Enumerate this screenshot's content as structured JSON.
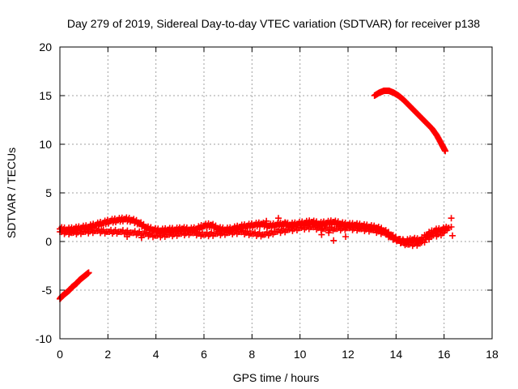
{
  "chart_data": {
    "type": "scatter",
    "title": "Day 279 of 2019, Sidereal Day-to-day VTEC variation (SDTVAR) for receiver p138",
    "xlabel": "GPS time / hours",
    "ylabel": "SDTVAR / TECUs",
    "xlim": [
      0,
      18
    ],
    "ylim": [
      -10,
      20
    ],
    "xticks": [
      0,
      2,
      4,
      6,
      8,
      10,
      12,
      14,
      16,
      18
    ],
    "yticks": [
      -10,
      -5,
      0,
      5,
      10,
      15,
      20
    ],
    "grid": true,
    "marker": "plus",
    "series_color": "#ff0000",
    "series": [
      {
        "name": "upper-arc-sdtvar",
        "x": [
          13.1,
          13.3,
          13.5,
          13.7,
          13.9,
          14.1,
          14.3,
          14.5,
          14.7,
          14.9,
          15.1,
          15.3,
          15.5,
          15.7,
          15.9,
          16.05
        ],
        "y": [
          15.0,
          15.3,
          15.5,
          15.5,
          15.3,
          15.0,
          14.6,
          14.1,
          13.6,
          13.1,
          12.6,
          12.1,
          11.6,
          10.9,
          10.0,
          9.3
        ]
      },
      {
        "name": "lower-arc-sdtvar",
        "x": [
          0.0,
          0.1,
          0.2,
          0.3,
          0.4,
          0.5,
          0.6,
          0.7,
          0.8,
          0.9,
          1.0,
          1.1,
          1.2
        ],
        "y": [
          -5.9,
          -5.6,
          -5.4,
          -5.2,
          -5.0,
          -4.7,
          -4.5,
          -4.3,
          -4.0,
          -3.8,
          -3.6,
          -3.4,
          -3.2
        ]
      },
      {
        "name": "main-band-sdtvar",
        "x": [
          0.0,
          0.3,
          0.6,
          0.9,
          1.2,
          1.5,
          1.8,
          2.1,
          2.4,
          2.7,
          3.0,
          3.3,
          3.6,
          3.9,
          4.2,
          4.5,
          4.8,
          5.1,
          5.4,
          5.7,
          6.0,
          6.3,
          6.6,
          6.9,
          7.2,
          7.5,
          7.8,
          8.1,
          8.4,
          8.7,
          9.0,
          9.3,
          9.6,
          9.9,
          10.2,
          10.5,
          10.8,
          11.1,
          11.4,
          11.7,
          12.0,
          12.3,
          12.6,
          12.9,
          13.2,
          13.5,
          13.8,
          14.1,
          14.4,
          14.7,
          15.0,
          15.3,
          15.6,
          15.9,
          16.2
        ],
        "y": [
          1.3,
          1.2,
          1.3,
          1.4,
          1.5,
          1.7,
          1.9,
          2.1,
          2.2,
          2.3,
          2.2,
          1.9,
          1.4,
          1.2,
          1.1,
          1.2,
          1.2,
          1.3,
          1.2,
          1.3,
          1.6,
          1.7,
          1.3,
          1.2,
          1.3,
          1.5,
          1.6,
          1.7,
          1.8,
          1.6,
          1.7,
          1.8,
          1.7,
          1.8,
          1.9,
          2.0,
          1.8,
          1.9,
          2.0,
          1.8,
          1.7,
          1.7,
          1.6,
          1.5,
          1.4,
          1.1,
          0.6,
          0.1,
          0.0,
          0.2,
          0.1,
          0.7,
          1.1,
          1.2,
          1.4
        ]
      },
      {
        "name": "lower-band-sdtvar",
        "x": [
          0.0,
          0.5,
          1.0,
          1.5,
          2.0,
          2.5,
          3.0,
          3.5,
          4.0,
          4.5,
          5.0,
          5.5,
          6.0,
          6.5,
          7.0,
          7.5,
          8.0,
          8.5,
          9.0,
          9.5,
          10.0,
          10.5,
          11.0,
          11.5,
          12.0,
          12.5,
          13.0,
          13.5,
          14.0,
          14.5,
          15.0,
          15.5,
          16.0
        ],
        "y": [
          1.0,
          0.9,
          1.0,
          1.1,
          1.0,
          1.0,
          0.9,
          0.8,
          0.6,
          0.7,
          0.8,
          0.9,
          0.7,
          0.8,
          0.9,
          1.0,
          0.8,
          0.7,
          1.0,
          1.2,
          1.4,
          1.5,
          1.3,
          1.3,
          1.4,
          1.3,
          1.2,
          0.9,
          0.2,
          -0.3,
          -0.2,
          0.6,
          0.9
        ]
      },
      {
        "name": "scatter-points-sdtvar",
        "x": [
          8.6,
          9.1,
          9.4,
          10.9,
          11.2,
          11.4,
          11.9,
          16.3,
          16.3,
          16.35,
          2.8,
          3.4
        ],
        "y": [
          2.1,
          2.4,
          1.9,
          0.7,
          0.9,
          0.1,
          0.5,
          2.4,
          1.5,
          0.6,
          0.5,
          0.4
        ]
      }
    ]
  }
}
